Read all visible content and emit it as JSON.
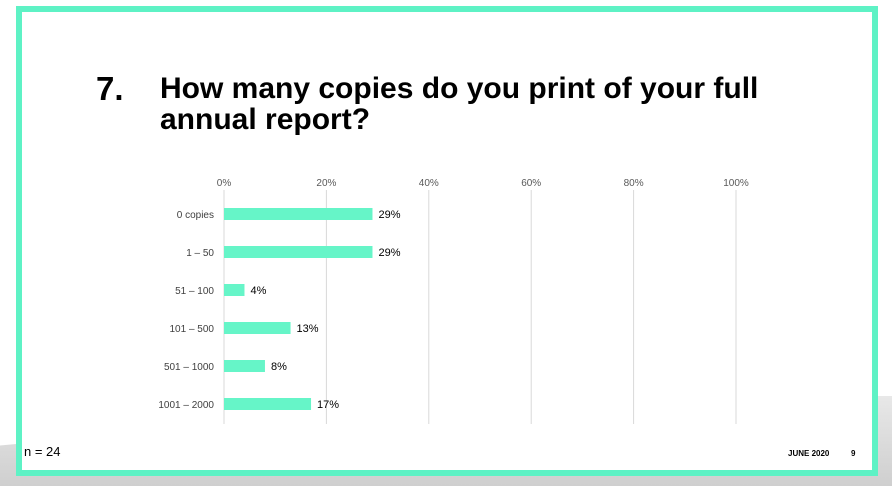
{
  "slide": {
    "question_number": "7.",
    "question_title": "How many copies do you print of your full annual report?",
    "sample_size": "n = 24",
    "date": "JUNE 2020",
    "page_number": "9"
  },
  "colors": {
    "accent": "#5ef2c5",
    "bar": "#66f5c8",
    "grid": "#d9d9d9"
  },
  "chart_data": {
    "type": "bar",
    "orientation": "horizontal",
    "categories": [
      "0 copies",
      "1 – 50",
      "51 – 100",
      "101 – 500",
      "501 – 1000",
      "1001 – 2000"
    ],
    "values": [
      29,
      29,
      4,
      13,
      8,
      17
    ],
    "value_labels": [
      "29%",
      "29%",
      "4%",
      "13%",
      "8%",
      "17%"
    ],
    "xlim": [
      0,
      100
    ],
    "x_ticks": [
      "0%",
      "20%",
      "40%",
      "60%",
      "80%",
      "100%"
    ],
    "grid": true,
    "legend": false
  }
}
